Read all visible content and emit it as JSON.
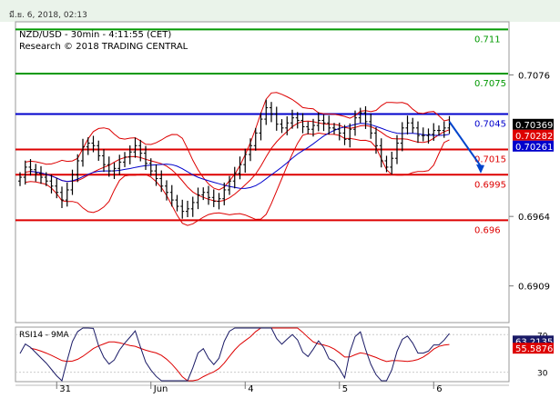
{
  "header": {
    "timestamp": "มี.ย. 6, 2018, 02:13"
  },
  "chart_data": {
    "type": "line",
    "title": "NZD/USD - 30min - 4:11:55 (CET)",
    "subtitle": "Research © 2018 TRADING CENTRAL",
    "price_axis": {
      "ylim": [
        0.688,
        0.7118
      ],
      "ticks": [
        0.7076,
        0.6964,
        0.6909
      ]
    },
    "x_ticks": [
      {
        "label": "31",
        "bar": 7
      },
      {
        "label": "Jun",
        "bar": 25
      },
      {
        "label": "4",
        "bar": 43
      },
      {
        "label": "5",
        "bar": 61
      },
      {
        "label": "6",
        "bar": 79
      }
    ],
    "n_bars": 83,
    "levels": [
      {
        "label": "0.711",
        "value": 0.7112,
        "color": "#009900"
      },
      {
        "label": "0.7075",
        "value": 0.7077,
        "color": "#009900"
      },
      {
        "label": "0.7045",
        "value": 0.7045,
        "color": "#0000cc"
      },
      {
        "label": "0.7015",
        "value": 0.7017,
        "color": "#dd0000"
      },
      {
        "label": "0.6995",
        "value": 0.6997,
        "color": "#dd0000"
      },
      {
        "label": "0.696",
        "value": 0.6961,
        "color": "#dd0000"
      }
    ],
    "price_badges": [
      {
        "label": "0.70369",
        "value": 0.70369,
        "bg": "#000000"
      },
      {
        "label": "0.70282",
        "value": 0.70282,
        "bg": "#dd0000"
      },
      {
        "label": "0.70261",
        "value": 0.70261,
        "bg": "#0000cc"
      }
    ],
    "close": [
      0.6995,
      0.7003,
      0.7001,
      0.6998,
      0.6995,
      0.6992,
      0.6988,
      0.6983,
      0.6977,
      0.6985,
      0.6997,
      0.7008,
      0.7019,
      0.7022,
      0.702,
      0.7012,
      0.7005,
      0.7,
      0.7002,
      0.7007,
      0.7011,
      0.7015,
      0.702,
      0.7014,
      0.7006,
      0.7,
      0.6994,
      0.6988,
      0.6983,
      0.6977,
      0.6972,
      0.6968,
      0.697,
      0.6975,
      0.6981,
      0.6983,
      0.6979,
      0.6976,
      0.6978,
      0.6985,
      0.6992,
      0.6998,
      0.7005,
      0.7013,
      0.702,
      0.703,
      0.7041,
      0.705,
      0.7045,
      0.7037,
      0.7034,
      0.7038,
      0.7042,
      0.704,
      0.7035,
      0.7033,
      0.7036,
      0.704,
      0.7038,
      0.7034,
      0.7033,
      0.703,
      0.7025,
      0.7033,
      0.7042,
      0.7046,
      0.7039,
      0.703,
      0.702,
      0.7008,
      0.7003,
      0.701,
      0.7022,
      0.7034,
      0.7038,
      0.7034,
      0.7028,
      0.7028,
      0.7029,
      0.7032,
      0.7032,
      0.7034,
      0.7037
    ],
    "forecast_arrow": {
      "from_bar": 82,
      "from": 0.7039,
      "to_bar": 88,
      "to": 0.6998,
      "color": "#0044cc"
    },
    "rsi": {
      "title": "RSI14 - 9MA",
      "ylim": [
        20,
        78
      ],
      "ticks": [
        70,
        30
      ],
      "badges": [
        {
          "label": "63.2135",
          "value": 63.2135,
          "bg": "#1a1a66"
        },
        {
          "label": "55.5876",
          "value": 55.5876,
          "bg": "#dd0000"
        }
      ]
    }
  }
}
